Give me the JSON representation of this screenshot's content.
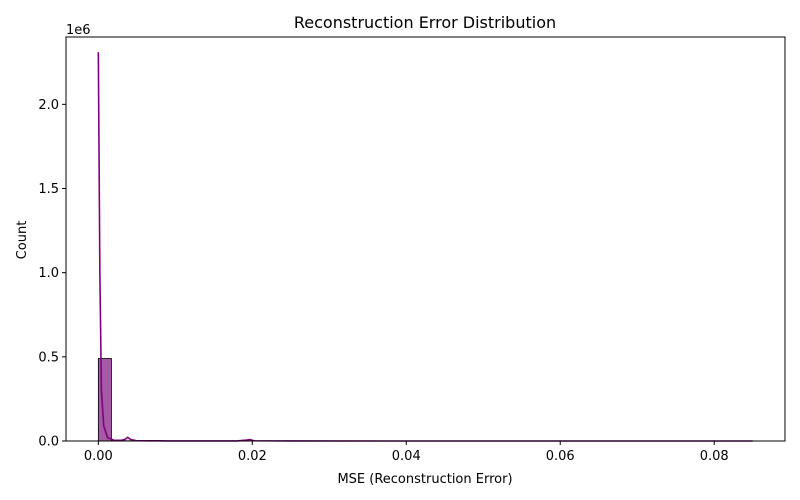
{
  "chart_data": {
    "type": "bar",
    "title": "Reconstruction Error Distribution",
    "xlabel": "MSE (Reconstruction Error)",
    "ylabel": "Count",
    "y_offset_label": "1e6",
    "xlim": [
      -0.0042,
      0.0892
    ],
    "ylim": [
      0,
      2400000
    ],
    "x_ticks": [
      0.0,
      0.02,
      0.04,
      0.06,
      0.08
    ],
    "x_tick_labels": [
      "0.00",
      "0.02",
      "0.04",
      "0.06",
      "0.08"
    ],
    "y_ticks": [
      0,
      500000,
      1000000,
      1500000,
      2000000
    ],
    "y_tick_labels": [
      "0.0",
      "0.5",
      "1.0",
      "1.5",
      "2.0"
    ],
    "bins": [
      {
        "x0": 0.0,
        "x1": 0.0017,
        "count": 490000
      },
      {
        "x0": 0.0017,
        "x1": 0.0034,
        "count": 3000
      },
      {
        "x0": 0.0034,
        "x1": 0.0051,
        "count": 1500
      }
    ],
    "kde_curve": {
      "x": [
        0.0,
        0.0002,
        0.0004,
        0.0007,
        0.0012,
        0.002,
        0.003,
        0.0035,
        0.0038,
        0.0042,
        0.005,
        0.007,
        0.008,
        0.009,
        0.012,
        0.018,
        0.0193,
        0.0197,
        0.0202,
        0.025,
        0.04,
        0.06,
        0.085
      ],
      "y": [
        2310000,
        1000000,
        300000,
        90000,
        20000,
        5000,
        4000,
        10000,
        22000,
        9000,
        1500,
        1000,
        1200,
        600,
        200,
        300,
        6000,
        9000,
        1500,
        200,
        0,
        0,
        0
      ]
    },
    "colors": {
      "bar_fill": "#a45aa4",
      "bar_edge": "#000000",
      "kde_line": "#800080"
    },
    "grid": false
  }
}
